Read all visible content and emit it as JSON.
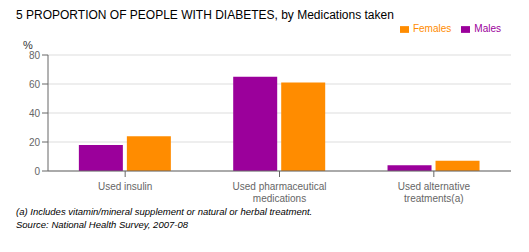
{
  "chart_data": {
    "type": "bar",
    "title": "5 PROPORTION OF PEOPLE WITH DIABETES, by Medications taken",
    "ylabel": "%",
    "categories": [
      "Used insulin",
      "Used pharmaceutical\nmedications",
      "Used alternative\ntreatments(a)"
    ],
    "series": [
      {
        "name": "Males",
        "color": "#9B009B",
        "values": [
          18,
          65,
          4
        ]
      },
      {
        "name": "Females",
        "color": "#FF8C00",
        "values": [
          24,
          61,
          7
        ]
      }
    ],
    "ylim": [
      0,
      80
    ],
    "yticks": [
      0,
      20,
      40,
      60,
      80
    ],
    "grid": true,
    "legend": "upper right",
    "annotations": [
      "(a) Includes vitamin/mineral supplement or natural or herbal treatment.",
      "Source: National Health Survey, 2007-08"
    ]
  }
}
